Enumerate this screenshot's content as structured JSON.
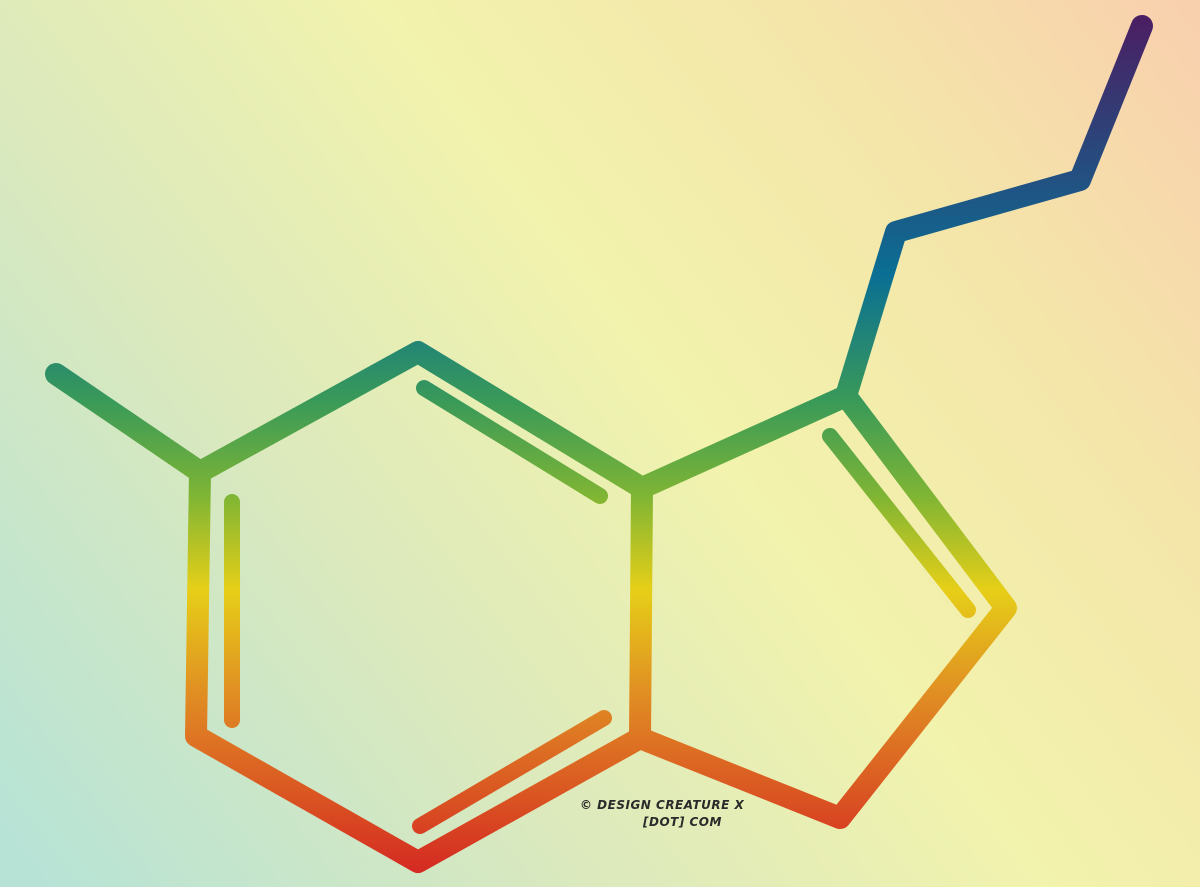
{
  "artwork": {
    "background": {
      "colors": [
        "#b7e3d6",
        "#dbe9bd",
        "#f2f3ad",
        "#f4e5a9",
        "#f9cfae"
      ]
    },
    "stroke_gradient": {
      "colors": [
        "#4a1f63",
        "#0a6f94",
        "#3a9a58",
        "#7fb534",
        "#e6cf18",
        "#e08a23",
        "#d52b22"
      ]
    },
    "credit": {
      "line1": "© DESIGN CREATURE X",
      "line2": "[DOT] COM"
    }
  }
}
